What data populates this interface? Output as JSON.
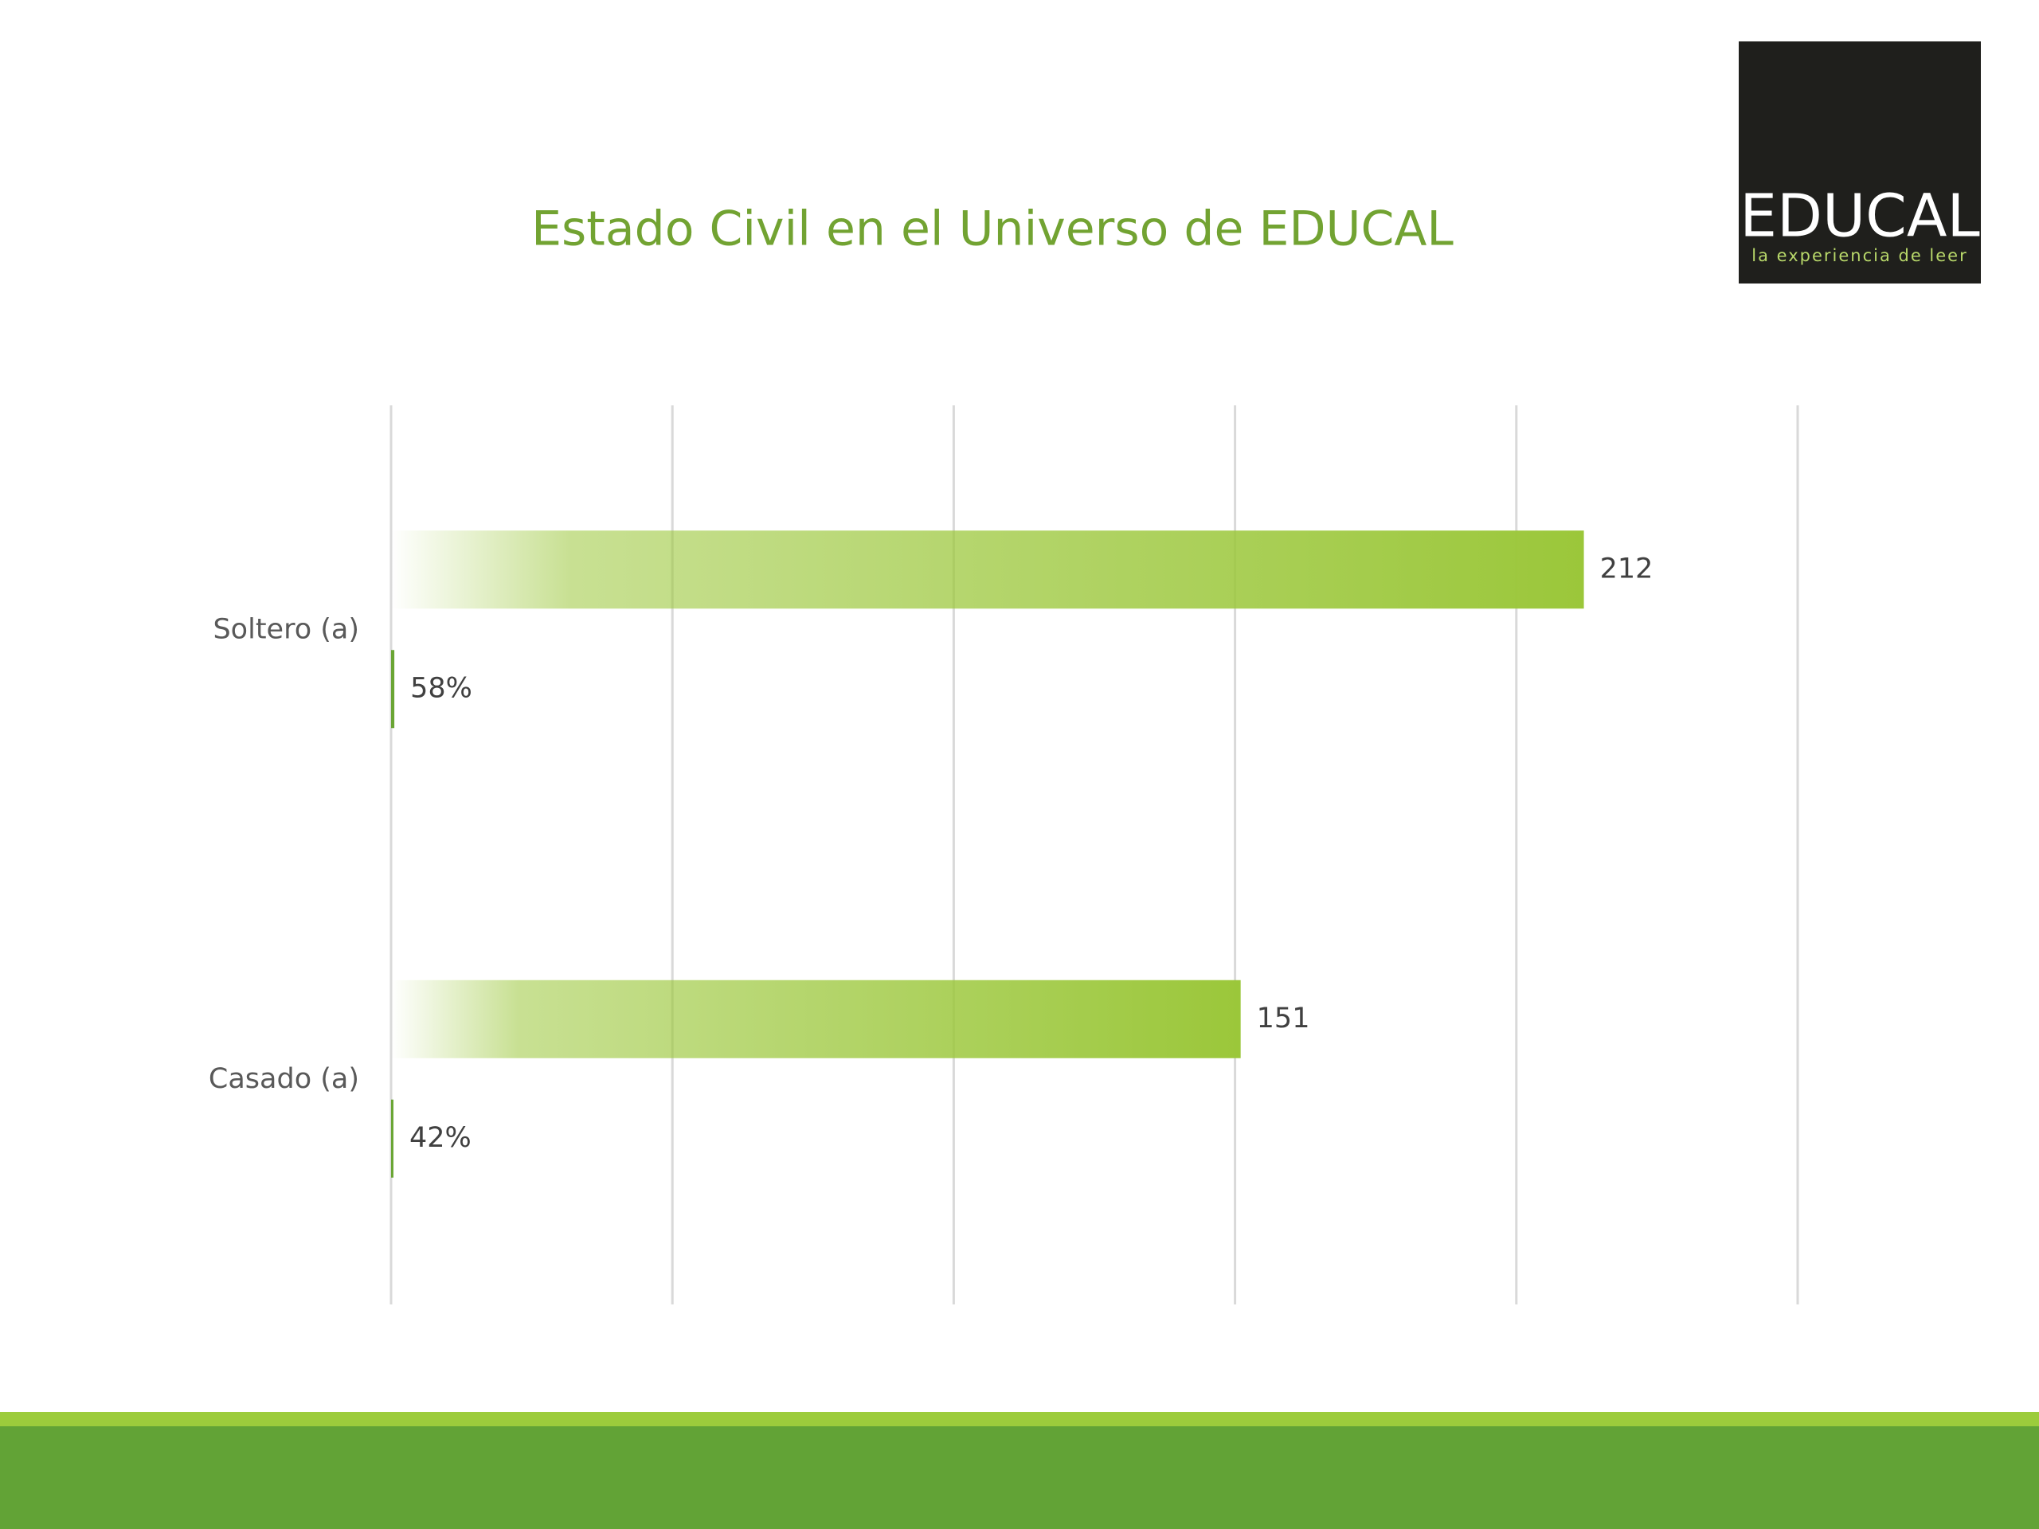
{
  "chart_data": {
    "type": "bar",
    "orientation": "horizontal",
    "title": "Estado Civil en el Universo de EDUCAL",
    "categories": [
      "Soltero (a)",
      "Casado (a)"
    ],
    "series": [
      {
        "color": "#9bc73a",
        "values": [
          212,
          151
        ]
      },
      {
        "color": "#6aa534",
        "values": [
          0.58,
          0.42
        ],
        "value_labels": [
          "58%",
          "42%"
        ]
      }
    ],
    "xlim": [
      0,
      250
    ],
    "xticks": [
      0,
      50,
      100,
      150,
      200,
      250
    ],
    "grid": true
  },
  "logo": {
    "name": "EDUCAL",
    "tagline": "la experiencia de leer"
  }
}
